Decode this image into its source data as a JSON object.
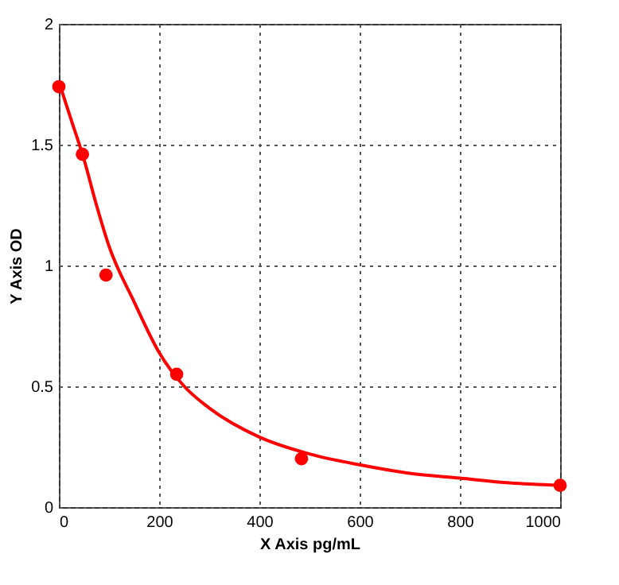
{
  "chart_data": {
    "type": "scatter",
    "xlabel": "X Axis pg/mL",
    "ylabel": "Y Axis OD",
    "xlim": [
      0,
      1000
    ],
    "ylim": [
      0,
      2
    ],
    "xticks": [
      0,
      200,
      400,
      600,
      800,
      1000
    ],
    "yticks": [
      0,
      0.5,
      1,
      1.5,
      2
    ],
    "grid": true,
    "marker": "circle",
    "series": [
      {
        "color": "#ff0000",
        "x": [
          0,
          47,
          94,
          235,
          484,
          1000
        ],
        "values": [
          1.74,
          1.46,
          0.96,
          0.55,
          0.2,
          0.09
        ]
      },
      {
        "type": "line",
        "color": "#ff0000",
        "marker": "none",
        "line_style": "solid",
        "x": [
          0,
          25,
          50,
          75,
          100,
          150,
          200,
          250,
          300,
          400,
          500,
          600,
          700,
          800,
          900,
          1000
        ],
        "values": [
          1.76,
          1.6,
          1.44,
          1.25,
          1.08,
          0.85,
          0.64,
          0.5,
          0.41,
          0.29,
          0.22,
          0.175,
          0.14,
          0.12,
          0.1,
          0.09
        ]
      }
    ]
  }
}
